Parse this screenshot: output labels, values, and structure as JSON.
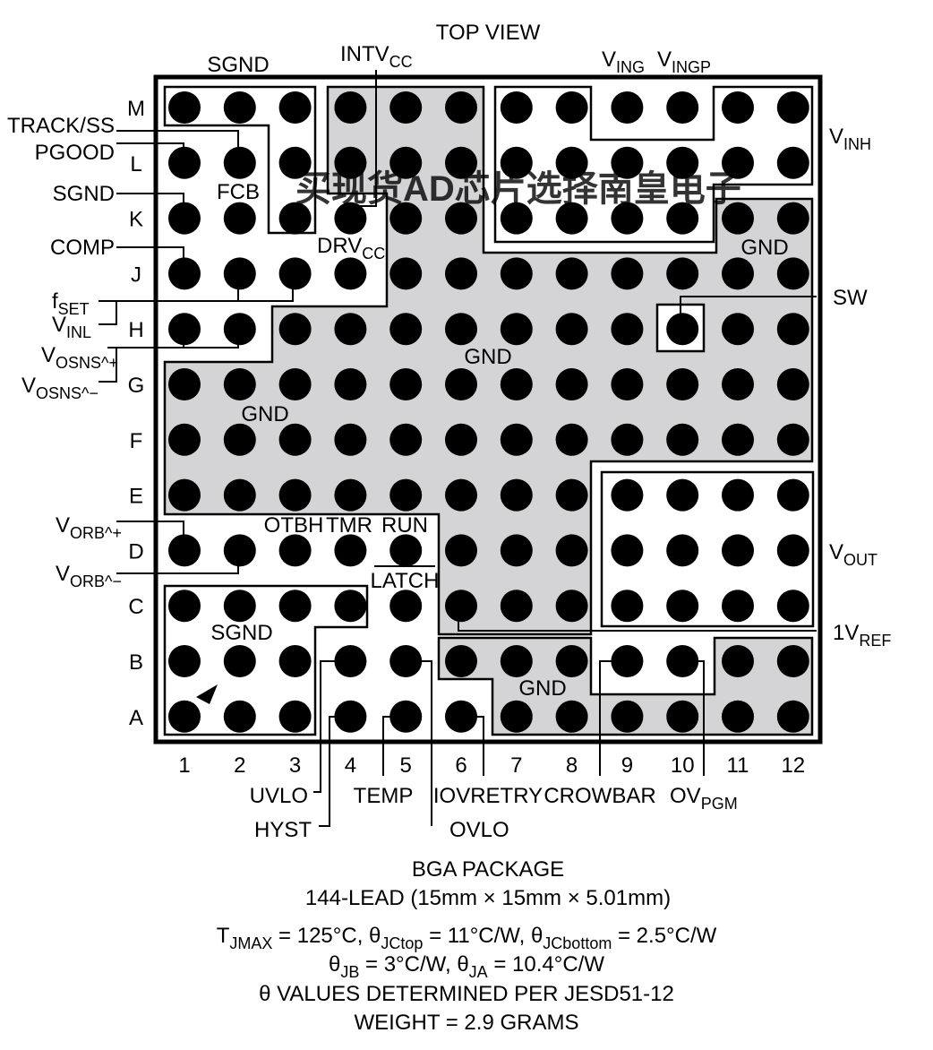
{
  "package": {
    "view": "TOP VIEW",
    "name": "BGA PACKAGE",
    "lead_count": "144-LEAD (15mm × 15mm × 5.01mm)",
    "tjmax": "T_JMAX = 125°C, θ_JCtop = 11°C/W, θ_JCbottom = 2.5°C/W",
    "theta": "θ_JB = 3°C/W, θ_JA = 10.4°C/W",
    "jedec": "θ VALUES DETERMINED PER JESD51-12",
    "weight": "WEIGHT = 2.9 GRAMS"
  },
  "rows": [
    "M",
    "L",
    "K",
    "J",
    "H",
    "G",
    "F",
    "E",
    "D",
    "C",
    "B",
    "A"
  ],
  "columns": [
    "1",
    "2",
    "3",
    "4",
    "5",
    "6",
    "7",
    "8",
    "9",
    "10",
    "11",
    "12"
  ],
  "pins": {
    "sgnd_top": "SGND",
    "intvcc": "INTV_CC",
    "ving": "V_ING",
    "vingp": "V_INGP",
    "vinh": "V_INH",
    "track_ss": "TRACK/SS",
    "pgood": "PGOOD",
    "sgnd_left": "SGND",
    "comp": "COMP",
    "fset": "f_SET",
    "vinl": "V_INL",
    "vosns_plus": "V_OSNS^+",
    "vosns_minus": "V_OSNS^−",
    "fcb": "FCB",
    "drvcc": "DRV_CC",
    "gnd_right_top": "GND",
    "sw": "SW",
    "gnd_center": "GND",
    "gnd_left": "GND",
    "vorb_plus": "V_ORB^+",
    "vorb_minus": "V_ORB^−",
    "otbh": "OTBH",
    "tmr": "TMR",
    "run": "RUN",
    "latch": "LATCH",
    "vout": "V_OUT",
    "onevref": "1V_REF",
    "sgnd_bottom": "SGND",
    "gnd_bottom": "GND",
    "uvlo": "UVLO",
    "hyst": "HYST",
    "temp": "TEMP",
    "iovretry": "IOVRETRY",
    "ovlo": "OVLO",
    "crowbar": "CROWBAR",
    "ovpgm": "OV_PGM"
  },
  "watermark": "买现货AD芯片选择南皇电子",
  "colors": {
    "gnd_fill": "#d4d4d6",
    "ball": "#000000",
    "outline": "#000000",
    "watermark": "#f28a8a"
  }
}
